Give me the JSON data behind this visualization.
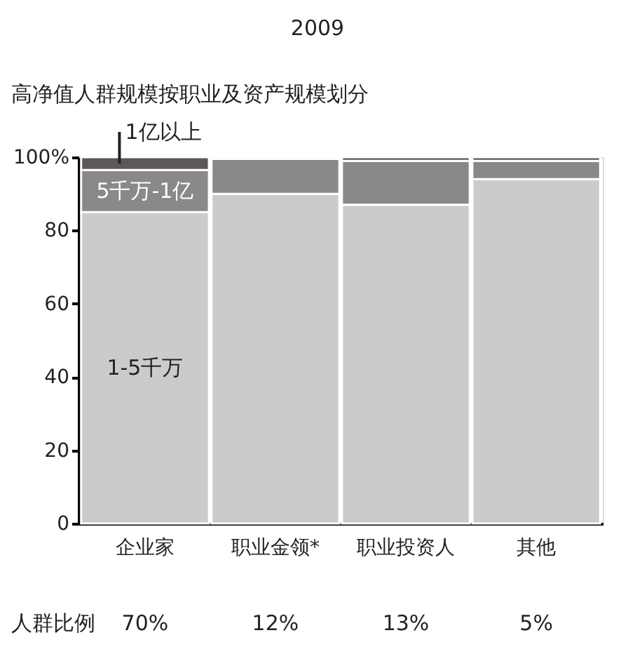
{
  "chart_data": {
    "type": "bar",
    "stacked": true,
    "title": "2009",
    "subtitle": "高净值人群规模按职业及资产规模划分",
    "categories": [
      "企业家",
      "职业金领*",
      "职业投资人",
      "其他"
    ],
    "ylim": [
      0,
      100
    ],
    "yticks": [
      0,
      20,
      40,
      60,
      80,
      {
        "value": 100,
        "label": "100%"
      }
    ],
    "series": [
      {
        "name": "1-5千万",
        "color": "#cbcbcd",
        "values": [
          85,
          90,
          87,
          94
        ]
      },
      {
        "name": "5千万-1亿",
        "color": "#8a8889",
        "values": [
          11.5,
          9.5,
          12,
          5
        ]
      },
      {
        "name": "1亿以上",
        "color": "#5b575a",
        "values": [
          3.5,
          0.5,
          1,
          1
        ]
      }
    ],
    "annotations": [
      "人群比例",
      "70%",
      "12%",
      "13%",
      "5%"
    ],
    "grid": false,
    "legend": false
  }
}
